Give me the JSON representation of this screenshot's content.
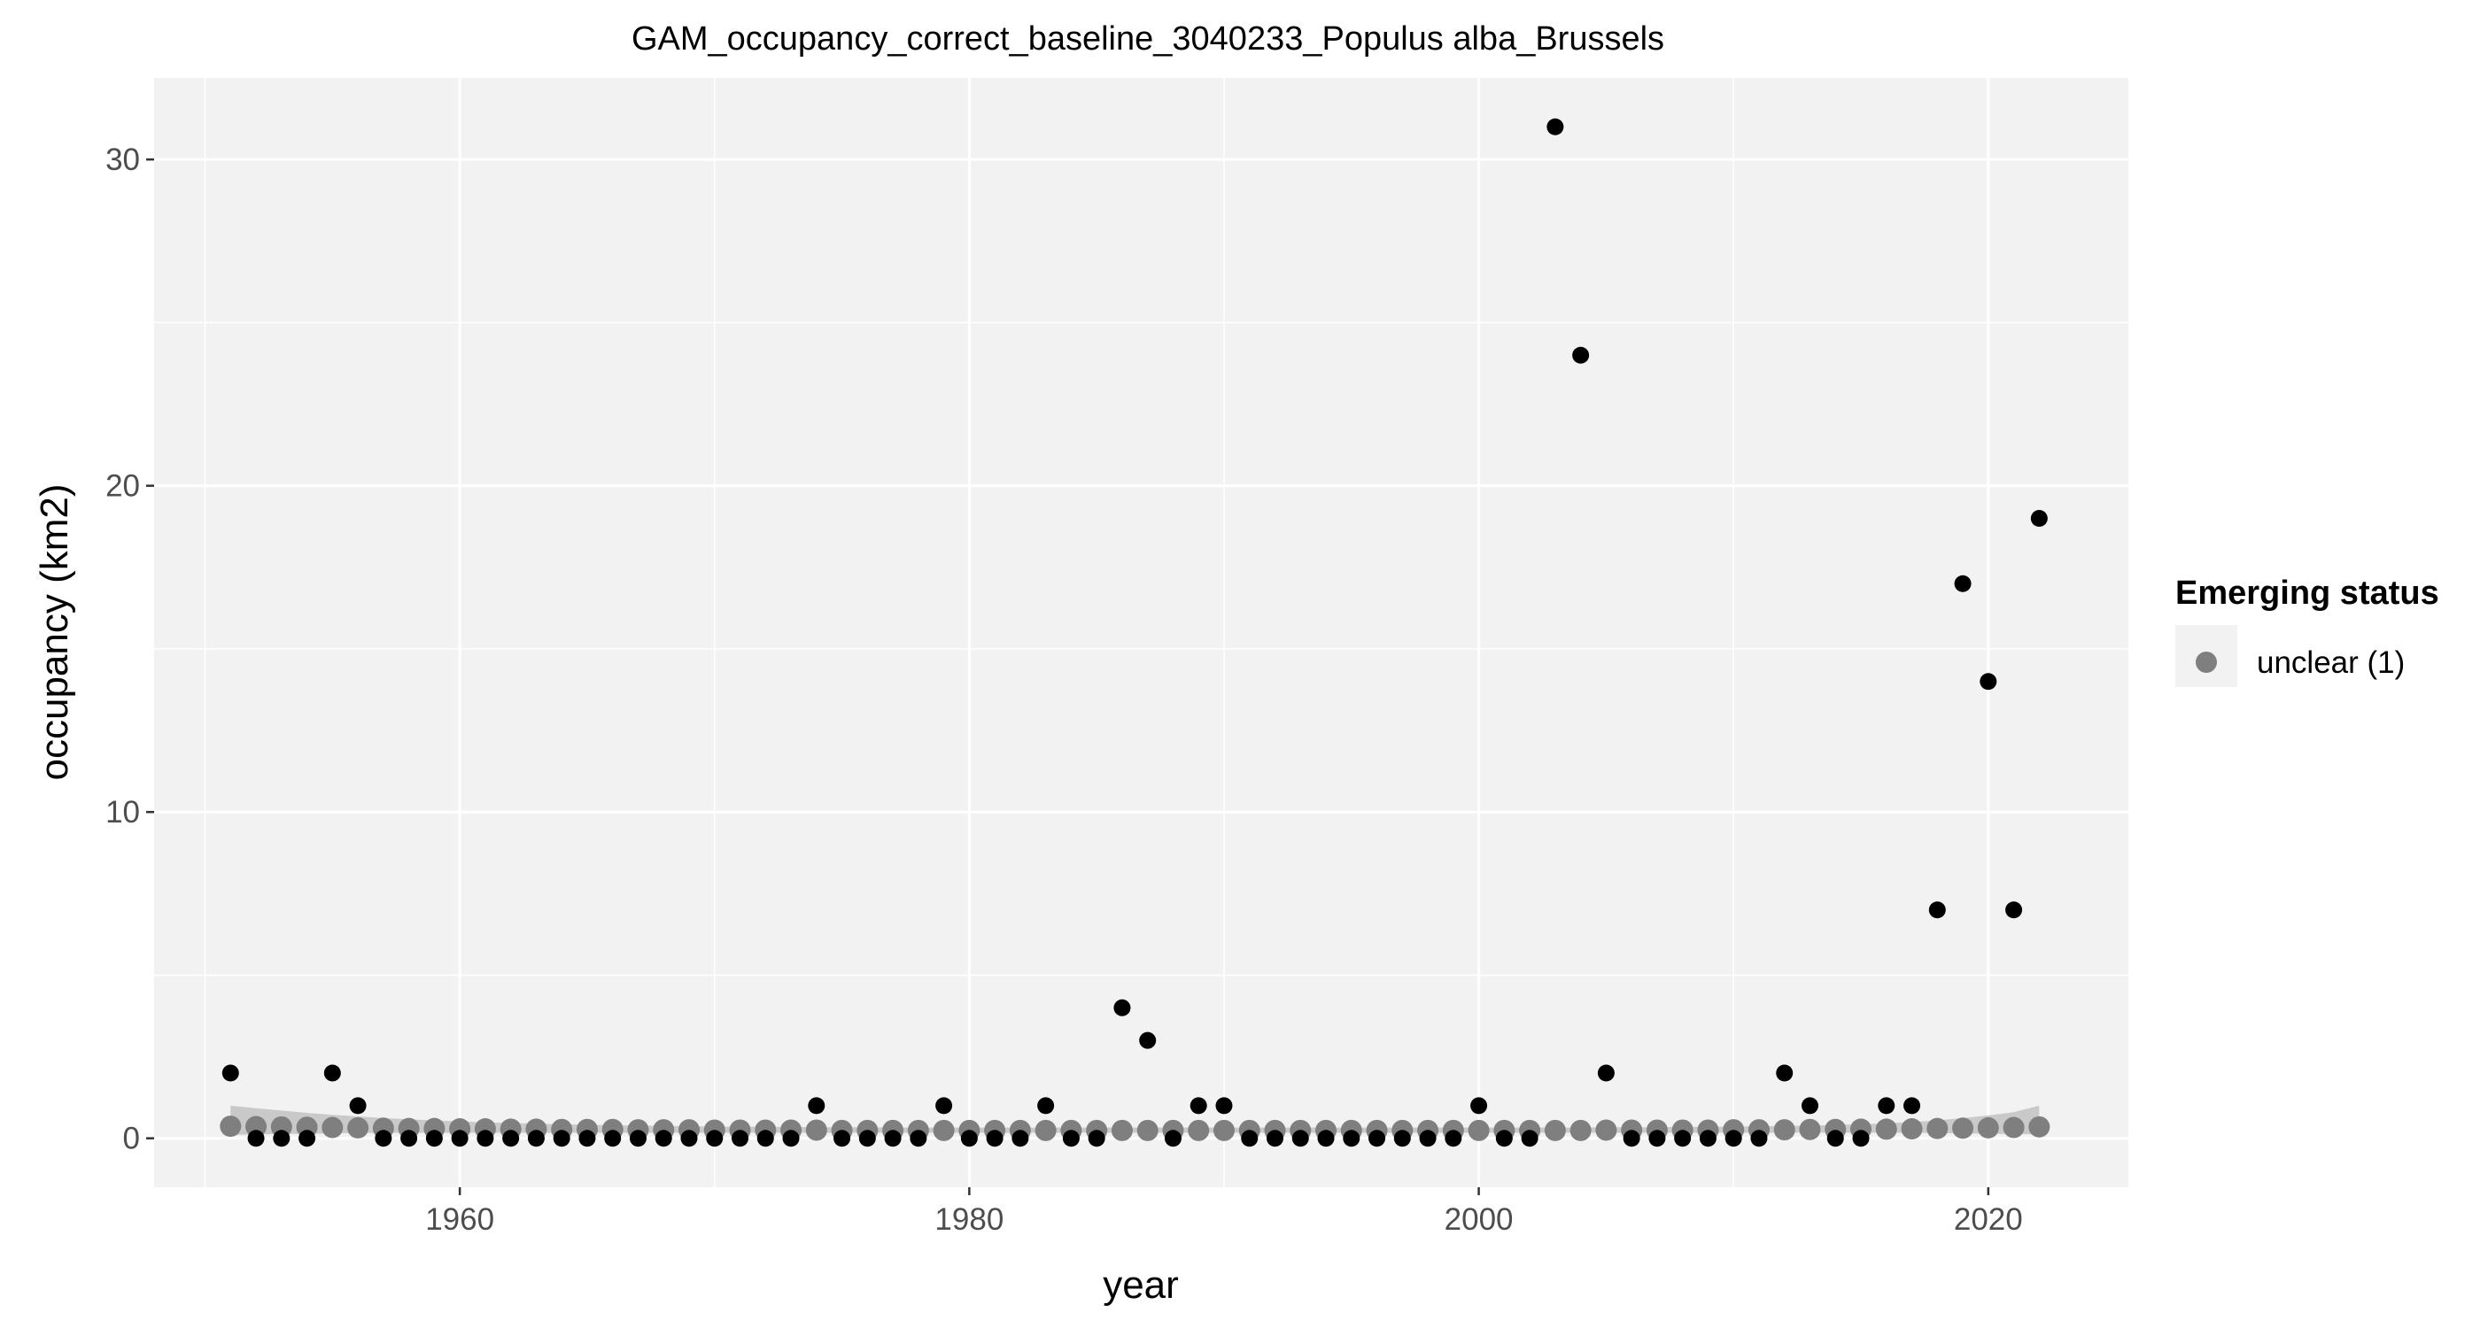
{
  "chart_data": {
    "type": "scatter",
    "title": "GAM_occupancy_correct_baseline_3040233_Populus alba_Brussels",
    "xlabel": "year",
    "ylabel": "occupancy (km2)",
    "xlim": [
      1948,
      2025.5
    ],
    "ylim": [
      -1.5,
      32.5
    ],
    "x_ticks": [
      1960,
      1980,
      2000,
      2020
    ],
    "y_ticks": [
      0,
      10,
      20,
      30
    ],
    "grid": true,
    "legend": {
      "title": "Emerging status",
      "position": "right",
      "entries": [
        {
          "label": "unclear (1)",
          "color": "#7f7f7f"
        }
      ]
    },
    "colors": {
      "panel_background": "#f2f2f2",
      "grid": "#ffffff",
      "observed": "#000000",
      "fitted": "#7f7f7f",
      "ribbon": "#c4c4c4"
    },
    "series": [
      {
        "x": [
          1951,
          1952,
          1953,
          1954,
          1955,
          1956,
          1957,
          1958,
          1959,
          1960,
          1961,
          1962,
          1963,
          1964,
          1965,
          1966,
          1967,
          1968,
          1969,
          1970,
          1971,
          1972,
          1973,
          1974,
          1975,
          1976,
          1977,
          1978,
          1979,
          1980,
          1981,
          1982,
          1983,
          1984,
          1985,
          1986,
          1987,
          1988,
          1989,
          1990,
          1991,
          1992,
          1993,
          1994,
          1995,
          1996,
          1997,
          1998,
          1999,
          2000,
          2001,
          2002,
          2003,
          2004,
          2005,
          2006,
          2007,
          2008,
          2009,
          2010,
          2011,
          2012,
          2013,
          2014,
          2015,
          2016,
          2017,
          2018,
          2019,
          2020,
          2021,
          2022
        ],
        "values": [
          2,
          0,
          0,
          0,
          2,
          1,
          0,
          0,
          0,
          0,
          0,
          0,
          0,
          0,
          0,
          0,
          0,
          0,
          0,
          0,
          0,
          0,
          0,
          1,
          0,
          0,
          0,
          0,
          1,
          0,
          0,
          0,
          1,
          0,
          0,
          4,
          3,
          0,
          1,
          1,
          0,
          0,
          0,
          0,
          0,
          0,
          0,
          0,
          0,
          1,
          0,
          0,
          31,
          24,
          2,
          0,
          0,
          0,
          0,
          0,
          0,
          2,
          1,
          0,
          0,
          1,
          1,
          7,
          17,
          14,
          7,
          19
        ]
      },
      {
        "name": "unclear (1)",
        "x": [
          1951,
          1952,
          1953,
          1954,
          1955,
          1956,
          1957,
          1958,
          1959,
          1960,
          1961,
          1962,
          1963,
          1964,
          1965,
          1966,
          1967,
          1968,
          1969,
          1970,
          1971,
          1972,
          1973,
          1974,
          1975,
          1976,
          1977,
          1978,
          1979,
          1980,
          1981,
          1982,
          1983,
          1984,
          1985,
          1986,
          1987,
          1988,
          1989,
          1990,
          1991,
          1992,
          1993,
          1994,
          1995,
          1996,
          1997,
          1998,
          1999,
          2000,
          2001,
          2002,
          2003,
          2004,
          2005,
          2006,
          2007,
          2008,
          2009,
          2010,
          2011,
          2012,
          2013,
          2014,
          2015,
          2016,
          2017,
          2018,
          2019,
          2020,
          2021,
          2022
        ],
        "values": [
          0.37,
          0.36,
          0.35,
          0.34,
          0.33,
          0.32,
          0.31,
          0.3,
          0.3,
          0.29,
          0.29,
          0.28,
          0.28,
          0.27,
          0.27,
          0.27,
          0.26,
          0.26,
          0.26,
          0.25,
          0.25,
          0.25,
          0.25,
          0.25,
          0.24,
          0.24,
          0.24,
          0.24,
          0.24,
          0.24,
          0.24,
          0.24,
          0.24,
          0.24,
          0.24,
          0.24,
          0.24,
          0.24,
          0.24,
          0.24,
          0.24,
          0.24,
          0.24,
          0.24,
          0.24,
          0.24,
          0.24,
          0.24,
          0.24,
          0.24,
          0.24,
          0.24,
          0.24,
          0.24,
          0.25,
          0.25,
          0.25,
          0.25,
          0.25,
          0.26,
          0.26,
          0.26,
          0.27,
          0.27,
          0.28,
          0.28,
          0.29,
          0.3,
          0.31,
          0.32,
          0.33,
          0.35
        ],
        "lower": [
          0.1,
          0.12,
          0.13,
          0.14,
          0.15,
          0.16,
          0.16,
          0.17,
          0.17,
          0.17,
          0.17,
          0.17,
          0.17,
          0.17,
          0.17,
          0.17,
          0.17,
          0.17,
          0.17,
          0.17,
          0.17,
          0.17,
          0.17,
          0.17,
          0.17,
          0.17,
          0.17,
          0.17,
          0.17,
          0.17,
          0.17,
          0.17,
          0.17,
          0.17,
          0.17,
          0.17,
          0.17,
          0.17,
          0.17,
          0.17,
          0.17,
          0.17,
          0.17,
          0.17,
          0.17,
          0.17,
          0.17,
          0.17,
          0.17,
          0.17,
          0.17,
          0.17,
          0.17,
          0.17,
          0.17,
          0.17,
          0.17,
          0.17,
          0.17,
          0.17,
          0.17,
          0.17,
          0.17,
          0.17,
          0.17,
          0.17,
          0.17,
          0.16,
          0.15,
          0.14,
          0.13,
          0.12
        ],
        "upper": [
          1.0,
          0.92,
          0.85,
          0.78,
          0.72,
          0.67,
          0.62,
          0.58,
          0.55,
          0.52,
          0.49,
          0.47,
          0.45,
          0.43,
          0.42,
          0.4,
          0.39,
          0.38,
          0.37,
          0.36,
          0.36,
          0.35,
          0.35,
          0.34,
          0.34,
          0.34,
          0.33,
          0.33,
          0.33,
          0.33,
          0.33,
          0.33,
          0.33,
          0.33,
          0.33,
          0.33,
          0.33,
          0.33,
          0.33,
          0.33,
          0.33,
          0.33,
          0.33,
          0.33,
          0.33,
          0.33,
          0.33,
          0.33,
          0.33,
          0.33,
          0.33,
          0.33,
          0.33,
          0.33,
          0.34,
          0.34,
          0.34,
          0.35,
          0.35,
          0.36,
          0.37,
          0.38,
          0.39,
          0.41,
          0.43,
          0.46,
          0.5,
          0.55,
          0.62,
          0.7,
          0.8,
          1.0
        ]
      }
    ]
  }
}
